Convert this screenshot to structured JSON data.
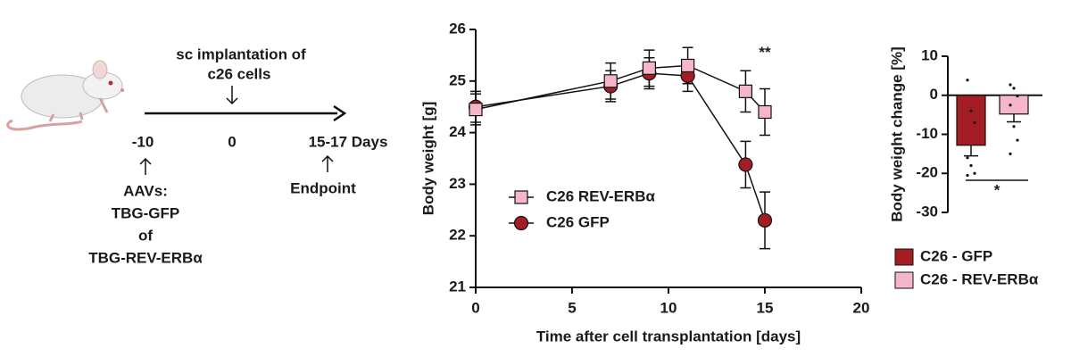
{
  "diagram": {
    "implantation": [
      "sc implantation of",
      "c26 cells"
    ],
    "timeline": [
      "-10",
      "0",
      "15-17 Days"
    ],
    "aav": [
      "AAVs:",
      "TBG-GFP",
      "of",
      "TBG-REV-ERBα"
    ],
    "endpoint": "Endpoint"
  },
  "chart_data": [
    {
      "type": "line",
      "xlabel": "Time after cell transplantation [days]",
      "ylabel": "Body weight [g]",
      "xlim": [
        0,
        20
      ],
      "xticks": [
        0,
        5,
        10,
        15,
        20
      ],
      "ylim": [
        21,
        26
      ],
      "yticks": [
        21,
        22,
        23,
        24,
        25,
        26
      ],
      "x": [
        0,
        7,
        9,
        11,
        14,
        15
      ],
      "series": [
        {
          "name": "C26 REV-ERBα",
          "color": "#f4b6c8",
          "marker": "square",
          "values": [
            24.45,
            25.0,
            25.25,
            25.3,
            24.8,
            24.4
          ],
          "errors": [
            0.3,
            0.35,
            0.35,
            0.35,
            0.4,
            0.45
          ]
        },
        {
          "name": "C26 GFP",
          "color": "#a31d24",
          "marker": "circle",
          "values": [
            24.5,
            24.9,
            25.15,
            25.1,
            23.38,
            22.3
          ],
          "errors": [
            0.3,
            0.3,
            0.3,
            0.3,
            0.45,
            0.55
          ]
        }
      ],
      "annotation": "**"
    },
    {
      "type": "bar",
      "ylabel": "Body weight change [%]",
      "ylim": [
        -30,
        10
      ],
      "yticks": [
        -30,
        -20,
        -10,
        0,
        10
      ],
      "series": [
        {
          "name": "C26 - GFP",
          "color": "#a31d24",
          "values": [
            -12.8
          ],
          "errors": [
            2.7
          ],
          "points": [
            3.9,
            -4,
            -7,
            -16,
            -18,
            -20,
            -20.5
          ]
        },
        {
          "name": "C26 - REV-ERBα",
          "color": "#f4b6c8",
          "values": [
            -4.8
          ],
          "errors": [
            2
          ],
          "points": [
            2.7,
            1.8,
            -0.2,
            -2.5,
            -8,
            -11.5,
            -15
          ]
        }
      ],
      "annotation": "*"
    }
  ]
}
